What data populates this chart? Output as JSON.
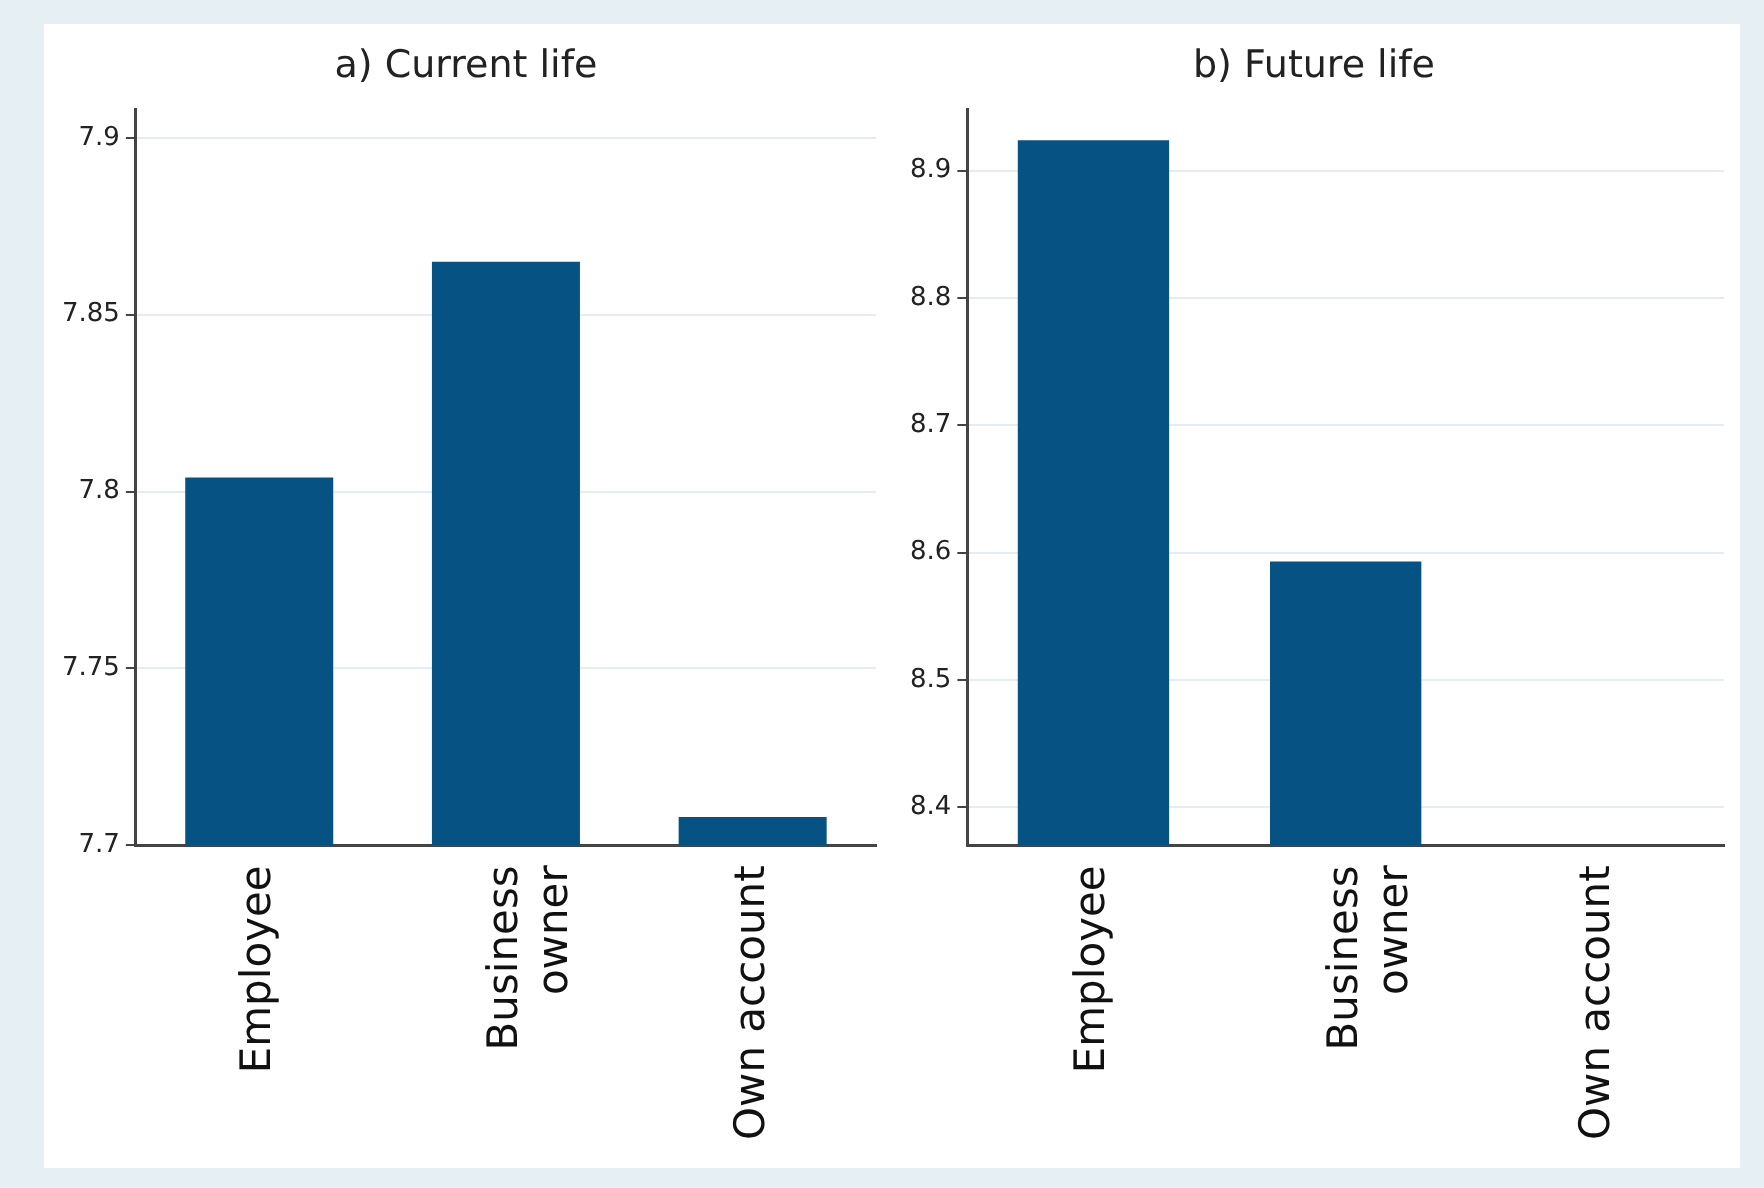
{
  "chart_data": [
    {
      "type": "bar",
      "title": "a) Current life",
      "categories": [
        "Employee",
        "Business owner",
        "Own account"
      ],
      "values": [
        7.804,
        7.865,
        7.708
      ],
      "color": "#065283",
      "ylim": [
        7.7,
        7.908
      ],
      "yticks": [
        7.7,
        7.75,
        7.8,
        7.85,
        7.9
      ],
      "grid": "y"
    },
    {
      "type": "bar",
      "title": "b) Future life",
      "categories": [
        "Employee",
        "Business owner",
        "Own account"
      ],
      "values": [
        8.924,
        8.593,
        null
      ],
      "color": "#065283",
      "ylim": [
        8.37,
        8.948
      ],
      "yticks": [
        8.4,
        8.5,
        8.6,
        8.7,
        8.8,
        8.9
      ],
      "grid": "y"
    }
  ]
}
